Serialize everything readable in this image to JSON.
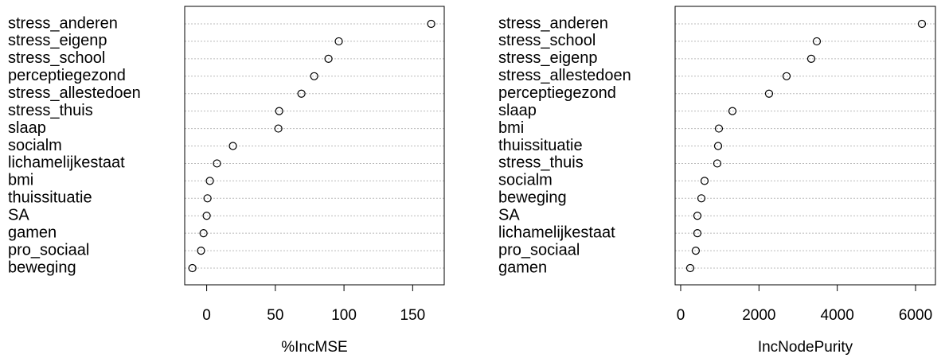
{
  "chart_data": [
    {
      "type": "dot",
      "xlabel": "%IncMSE",
      "categories": [
        "stress_anderen",
        "stress_eigenp",
        "stress_school",
        "perceptiegezond",
        "stress_allestedoen",
        "stress_thuis",
        "slaap",
        "socialm",
        "lichamelijkestaat",
        "bmi",
        "thuissituatie",
        "SA",
        "gamen",
        "pro_sociaal",
        "beweging"
      ],
      "values": [
        163.5,
        96.2,
        88.7,
        78.3,
        69,
        52.8,
        52.2,
        19.1,
        7.5,
        2.3,
        0.6,
        0,
        -2.3,
        -4.1,
        -10.4
      ],
      "xlim": [
        -16,
        173
      ],
      "xticks": [
        0,
        50,
        100,
        150
      ],
      "grid": true
    },
    {
      "type": "dot",
      "xlabel": "IncNodePurity",
      "categories": [
        "stress_anderen",
        "stress_school",
        "stress_eigenp",
        "stress_allestedoen",
        "perceptiegezond",
        "slaap",
        "bmi",
        "thuissituatie",
        "stress_thuis",
        "socialm",
        "beweging",
        "SA",
        "lichamelijkestaat",
        "pro_sociaal",
        "gamen"
      ],
      "values": [
        6162,
        3478,
        3335,
        2705,
        2257,
        1322,
        976,
        956,
        935,
        610,
        529,
        427,
        427,
        386,
        244
      ],
      "xlim": [
        -142,
        6508
      ],
      "xticks": [
        0,
        2000,
        4000,
        6000
      ],
      "grid": true
    }
  ]
}
